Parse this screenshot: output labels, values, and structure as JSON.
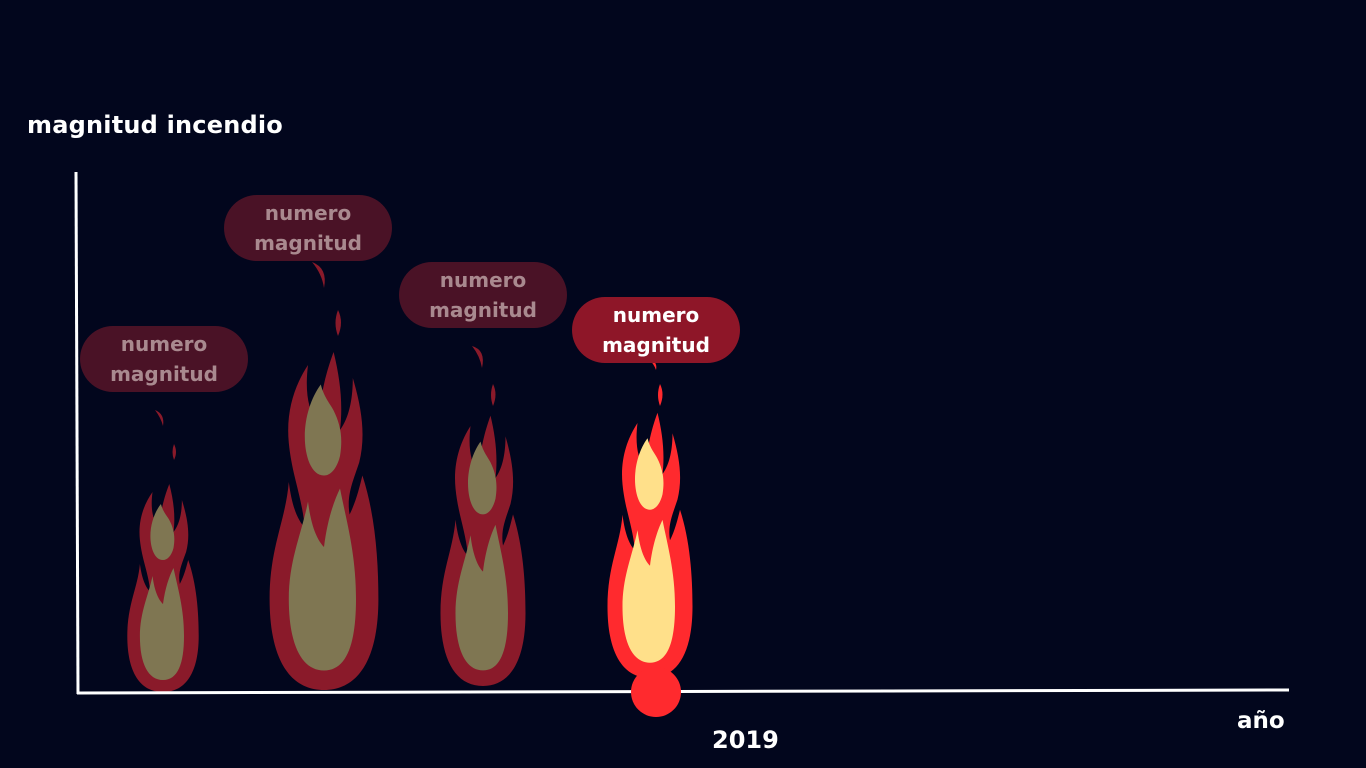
{
  "chart_data": {
    "type": "other",
    "ylabel": "magnitud incendio",
    "xlabel": "año",
    "highlight_tick": "2019",
    "items": [
      {
        "label_line1": "numero",
        "label_line2": "magnitud",
        "active": false
      },
      {
        "label_line1": "numero",
        "label_line2": "magnitud",
        "active": false
      },
      {
        "label_line1": "numero",
        "label_line2": "magnitud",
        "active": false
      },
      {
        "label_line1": "numero",
        "label_line2": "magnitud",
        "active": true
      }
    ]
  },
  "colors": {
    "background": "#02061d",
    "axis": "#ffffff",
    "flame_dim_outer": "#8a1a2a",
    "flame_dim_inner": "#7f7652",
    "flame_active_outer": "#ff2a2e",
    "flame_active_inner": "#ffe08a",
    "bubble_dim": "#4a1226",
    "bubble_active": "#8e1628",
    "year_marker": "#ff2a2e"
  }
}
